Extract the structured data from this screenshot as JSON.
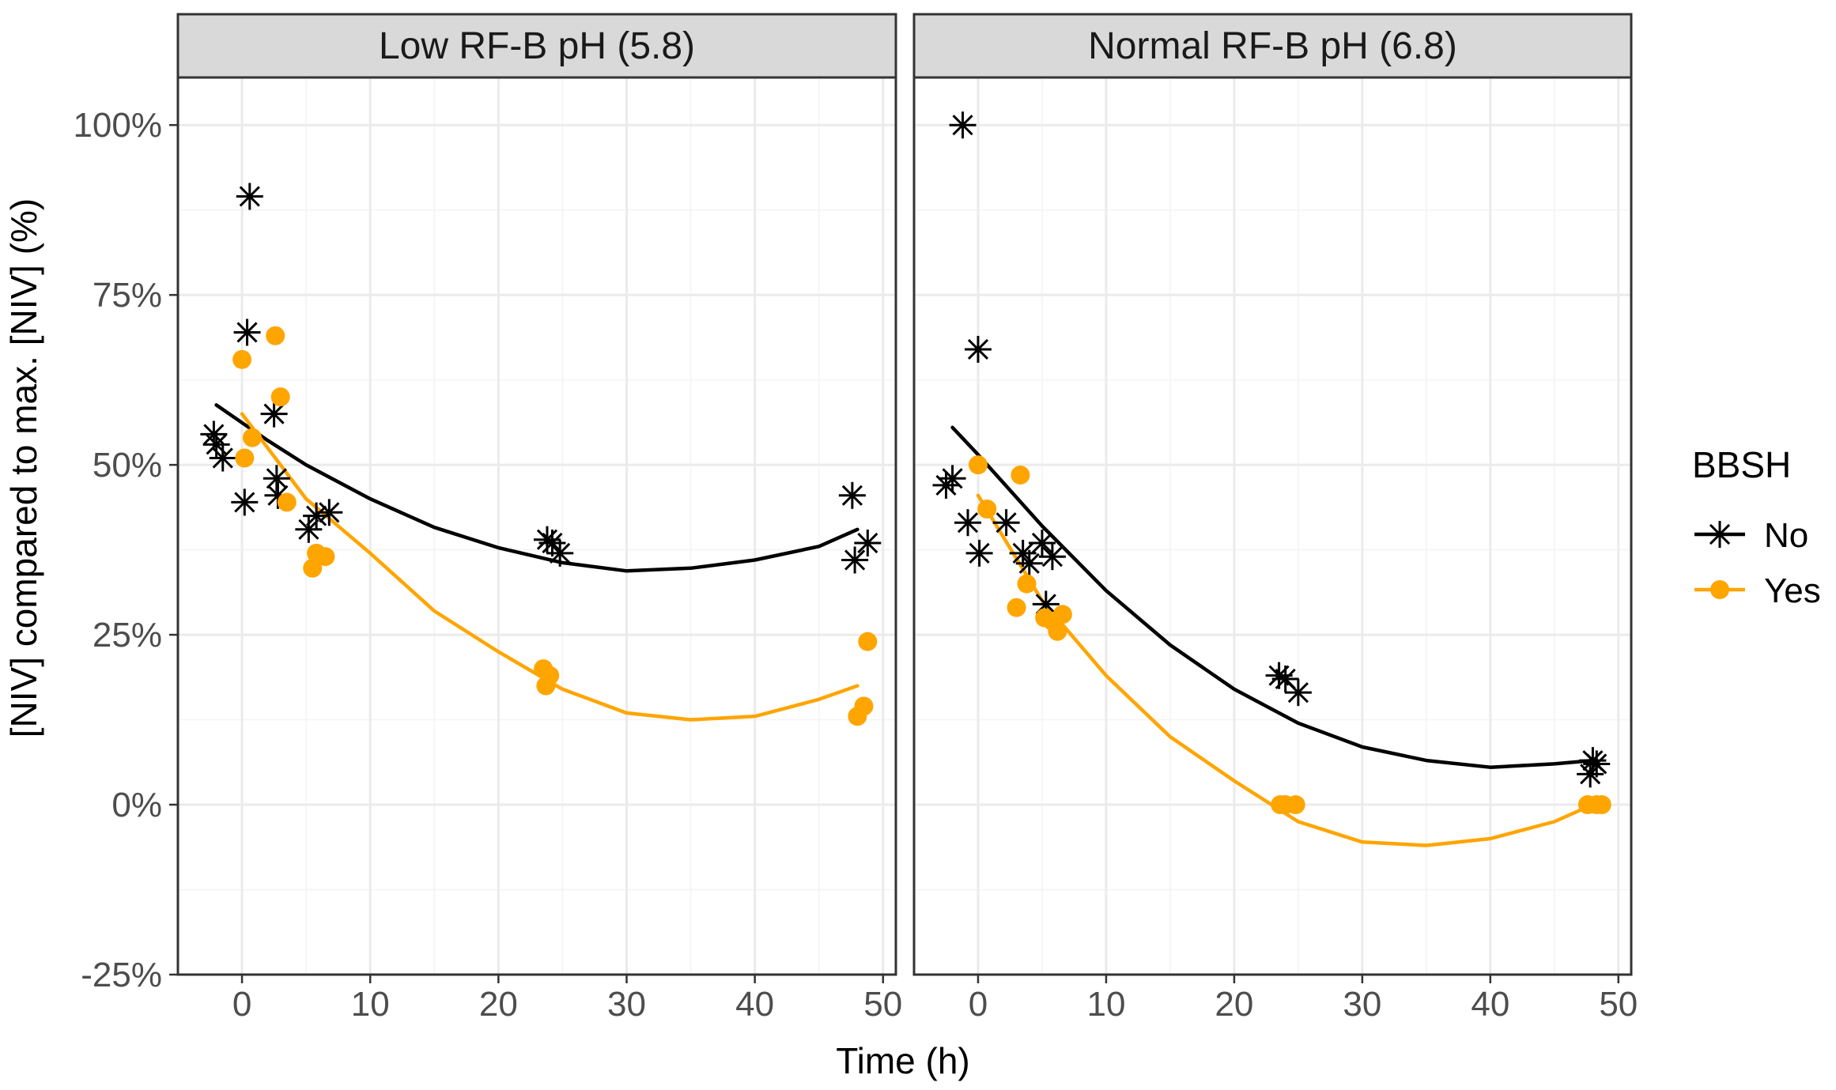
{
  "chart_data": {
    "type": "scatter",
    "xlabel": "Time (h)",
    "ylabel": "[NIV] compared to max. [NIV] (%)",
    "xlim": [
      -5,
      51
    ],
    "ylim": [
      -25,
      107
    ],
    "x_ticks": [
      0,
      10,
      20,
      30,
      40,
      50
    ],
    "x_tick_labels": [
      "0",
      "10",
      "20",
      "30",
      "40",
      "50"
    ],
    "y_ticks": [
      -25,
      0,
      25,
      50,
      75,
      100
    ],
    "y_tick_labels": [
      "-25%",
      "0%",
      "25%",
      "50%",
      "75%",
      "100%"
    ],
    "grid": true,
    "legend": {
      "title": "BBSH",
      "position": "right",
      "entries": [
        {
          "label": "No",
          "color": "#000000",
          "marker": "asterisk"
        },
        {
          "label": "Yes",
          "color": "#FFA500",
          "marker": "circle"
        }
      ]
    },
    "panels": [
      {
        "title": "Low RF-B pH (5.8)",
        "series": [
          {
            "name": "No",
            "color": "#000000",
            "marker": "asterisk",
            "points": [
              [
                -2.2,
                54.5
              ],
              [
                -2.0,
                53.0
              ],
              [
                -1.5,
                51.0
              ],
              [
                0.2,
                44.5
              ],
              [
                0.4,
                69.5
              ],
              [
                0.6,
                89.5
              ],
              [
                2.5,
                57.5
              ],
              [
                2.7,
                48.0
              ],
              [
                2.8,
                45.5
              ],
              [
                5.2,
                40.5
              ],
              [
                5.8,
                42.5
              ],
              [
                6.8,
                43.0
              ],
              [
                23.8,
                39.0
              ],
              [
                24.2,
                38.5
              ],
              [
                24.8,
                37.0
              ],
              [
                47.6,
                45.5
              ],
              [
                47.8,
                36.0
              ],
              [
                48.8,
                38.5
              ]
            ],
            "fit": [
              [
                -2.0,
                58.8
              ],
              [
                0,
                56.2
              ],
              [
                2,
                53.6
              ],
              [
                5,
                50.0
              ],
              [
                10,
                45.0
              ],
              [
                15,
                40.8
              ],
              [
                20,
                37.8
              ],
              [
                25,
                35.6
              ],
              [
                30,
                34.4
              ],
              [
                35,
                34.8
              ],
              [
                40,
                36.0
              ],
              [
                45,
                38.0
              ],
              [
                48,
                40.5
              ]
            ]
          },
          {
            "name": "Yes",
            "color": "#FFA500",
            "marker": "circle",
            "points": [
              [
                0.0,
                65.5
              ],
              [
                0.2,
                51.0
              ],
              [
                0.8,
                54.0
              ],
              [
                2.6,
                69.0
              ],
              [
                3.0,
                60.0
              ],
              [
                3.5,
                44.5
              ],
              [
                5.5,
                34.8
              ],
              [
                5.8,
                37.0
              ],
              [
                6.5,
                36.5
              ],
              [
                23.5,
                20.0
              ],
              [
                23.7,
                17.5
              ],
              [
                24.0,
                19.0
              ],
              [
                48.0,
                13.0
              ],
              [
                48.5,
                14.5
              ],
              [
                48.8,
                24.0
              ]
            ],
            "fit": [
              [
                0,
                57.5
              ],
              [
                2,
                52.5
              ],
              [
                5,
                45.0
              ],
              [
                10,
                37.0
              ],
              [
                15,
                28.5
              ],
              [
                20,
                22.5
              ],
              [
                25,
                17.0
              ],
              [
                30,
                13.5
              ],
              [
                35,
                12.5
              ],
              [
                40,
                13.0
              ],
              [
                45,
                15.5
              ],
              [
                48,
                17.5
              ]
            ]
          }
        ]
      },
      {
        "title": "Normal RF-B pH (6.8)",
        "series": [
          {
            "name": "No",
            "color": "#000000",
            "marker": "asterisk",
            "points": [
              [
                -2.5,
                47.0
              ],
              [
                -2.0,
                48.0
              ],
              [
                -1.2,
                100.0
              ],
              [
                -0.8,
                41.5
              ],
              [
                0.0,
                67.0
              ],
              [
                0.1,
                37.0
              ],
              [
                2.2,
                41.5
              ],
              [
                3.5,
                37.0
              ],
              [
                4.0,
                35.5
              ],
              [
                5.0,
                38.5
              ],
              [
                5.3,
                29.5
              ],
              [
                5.8,
                36.5
              ],
              [
                23.5,
                19.0
              ],
              [
                24.0,
                18.5
              ],
              [
                25.0,
                16.5
              ],
              [
                47.8,
                4.5
              ],
              [
                48.0,
                6.5
              ],
              [
                48.3,
                6.0
              ]
            ],
            "fit": [
              [
                -2.0,
                55.5
              ],
              [
                0,
                51.5
              ],
              [
                5,
                41.0
              ],
              [
                10,
                31.5
              ],
              [
                15,
                23.5
              ],
              [
                20,
                17.0
              ],
              [
                25,
                12.0
              ],
              [
                30,
                8.5
              ],
              [
                35,
                6.5
              ],
              [
                40,
                5.5
              ],
              [
                45,
                6.0
              ],
              [
                48,
                6.5
              ]
            ]
          },
          {
            "name": "Yes",
            "color": "#FFA500",
            "marker": "circle",
            "points": [
              [
                0.0,
                50.0
              ],
              [
                0.7,
                43.5
              ],
              [
                3.0,
                29.0
              ],
              [
                3.3,
                48.5
              ],
              [
                3.8,
                32.5
              ],
              [
                5.2,
                27.5
              ],
              [
                5.8,
                27.0
              ],
              [
                6.2,
                25.5
              ],
              [
                6.6,
                28.0
              ],
              [
                23.6,
                0.0
              ],
              [
                24.0,
                0.0
              ],
              [
                24.8,
                0.0
              ],
              [
                47.6,
                0.0
              ],
              [
                48.3,
                0.0
              ],
              [
                48.7,
                0.0
              ]
            ],
            "fit": [
              [
                0,
                45.5
              ],
              [
                5,
                30.0
              ],
              [
                10,
                19.0
              ],
              [
                15,
                10.0
              ],
              [
                20,
                3.5
              ],
              [
                25,
                -2.5
              ],
              [
                30,
                -5.5
              ],
              [
                35,
                -6.0
              ],
              [
                40,
                -5.0
              ],
              [
                45,
                -2.5
              ],
              [
                48,
                0.0
              ]
            ]
          }
        ]
      }
    ]
  }
}
